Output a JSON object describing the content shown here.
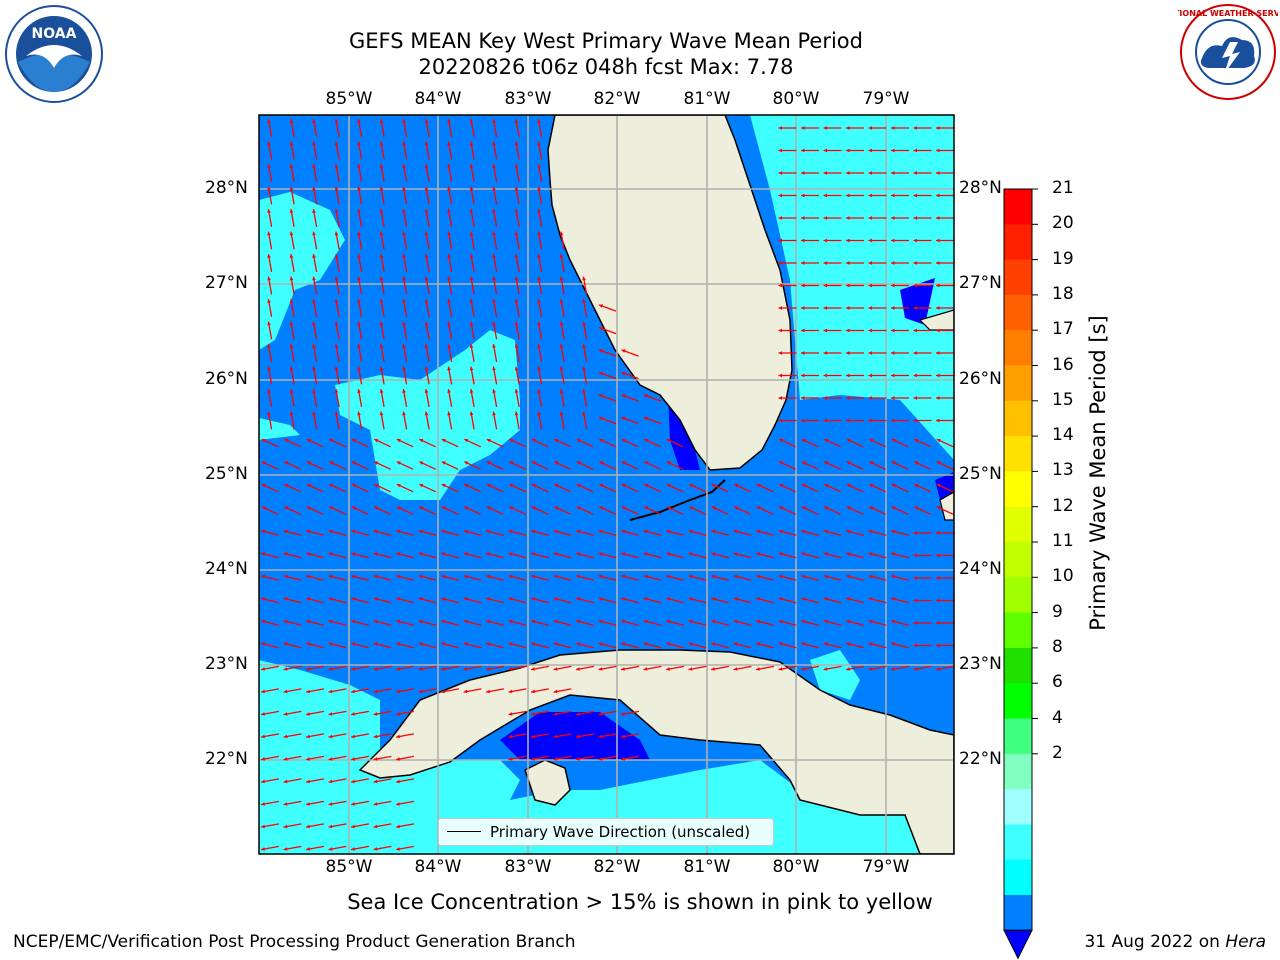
{
  "title": {
    "line1": "GEFS MEAN Key West Primary Wave Mean Period",
    "line2": "20220826 t06z 048h fcst   Max: 7.78"
  },
  "map": {
    "lon_labels": [
      "85°W",
      "84°W",
      "83°W",
      "82°W",
      "81°W",
      "80°W",
      "79°W"
    ],
    "lat_labels": [
      "28°N",
      "27°N",
      "26°N",
      "25°N",
      "24°N",
      "23°N",
      "22°N"
    ],
    "lon_range": [
      -86,
      -78.3
    ],
    "lat_range": [
      21,
      28.8
    ],
    "colors": {
      "ocean_2_4": "#0080ff",
      "ocean_4_6": "#00ffff",
      "ocean_6_8": "#44ffff",
      "below_2": "#0000ff",
      "land": "#eeeedd",
      "gap": "#ffffff",
      "grid": "#b0b0b0",
      "arrows": "#ff0000",
      "coast": "#000000"
    }
  },
  "colorbar": {
    "label": "Primary Wave Mean Period [s]",
    "ticks": [
      "21",
      "20",
      "19",
      "18",
      "17",
      "16",
      "15",
      "14",
      "13",
      "12",
      "11",
      "10",
      "9",
      "8",
      "6",
      "4",
      "2"
    ],
    "colors": [
      "#ff0000",
      "#ff2000",
      "#ff4000",
      "#ff6000",
      "#ff8000",
      "#ffa000",
      "#ffc000",
      "#ffe000",
      "#ffff00",
      "#e0ff00",
      "#c0ff00",
      "#a0ff00",
      "#60ff00",
      "#20e000",
      "#00ff00",
      "#40ff80",
      "#80ffc0",
      "#a0ffff",
      "#40ffff",
      "#00ffff",
      "#0080ff"
    ],
    "under_color": "#0000ff"
  },
  "legend": {
    "label": "Primary Wave Direction (unscaled)"
  },
  "note": "Sea Ice Concentration > 15% is shown in pink to yellow",
  "footer": {
    "left": "NCEP/EMC/Verification Post Processing Product Generation Branch",
    "date": "31 Aug 2022 on",
    "machine": "Hera"
  },
  "logos": {
    "left": "NOAA",
    "right": "NATIONAL WEATHER SERVICE"
  }
}
